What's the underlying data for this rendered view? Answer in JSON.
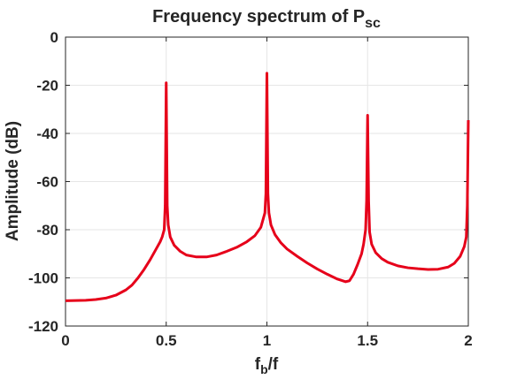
{
  "chart_data": {
    "type": "line",
    "title_main": "Frequency spectrum of P",
    "title_sub": "sc",
    "xlabel_main": "f",
    "xlabel_sub": "b",
    "xlabel_rest": "/f",
    "ylabel": "Amplitude (dB)",
    "xlim": [
      0,
      2
    ],
    "ylim": [
      -120,
      0
    ],
    "xticks": [
      0,
      0.5,
      1,
      1.5,
      2
    ],
    "xtick_labels": [
      "0",
      "0.5",
      "1",
      "1.5",
      "2"
    ],
    "yticks": [
      0,
      -20,
      -40,
      -60,
      -80,
      -100,
      -120
    ],
    "ytick_labels": [
      "0",
      "-20",
      "-40",
      "-60",
      "-80",
      "-100",
      "-120"
    ],
    "grid": true,
    "line_color": "#e6001a",
    "series": [
      {
        "x": [
          0,
          0.05,
          0.1,
          0.15,
          0.2,
          0.25,
          0.3,
          0.33,
          0.36,
          0.39,
          0.42,
          0.45,
          0.47,
          0.48,
          0.49,
          0.495,
          0.5,
          0.505,
          0.51,
          0.52,
          0.54,
          0.57,
          0.6,
          0.65,
          0.7,
          0.75,
          0.8,
          0.85,
          0.9,
          0.94,
          0.97,
          0.99,
          0.995,
          1.0,
          1.005,
          1.01,
          1.02,
          1.04,
          1.07,
          1.1,
          1.15,
          1.2,
          1.25,
          1.3,
          1.35,
          1.39,
          1.41,
          1.43,
          1.45,
          1.47,
          1.48,
          1.49,
          1.495,
          1.5,
          1.505,
          1.51,
          1.52,
          1.54,
          1.57,
          1.6,
          1.65,
          1.7,
          1.75,
          1.8,
          1.85,
          1.9,
          1.93,
          1.96,
          1.98,
          1.99,
          1.995,
          2.0
        ],
        "y": [
          -109.5,
          -109.4,
          -109.3,
          -109,
          -108.4,
          -107.2,
          -105,
          -103,
          -100,
          -96.5,
          -92.5,
          -88,
          -85,
          -83,
          -80,
          -70,
          -19,
          -70,
          -78,
          -83,
          -86.5,
          -89,
          -90.5,
          -91.3,
          -91.3,
          -90.5,
          -89,
          -87.3,
          -85,
          -82.5,
          -79,
          -73,
          -65,
          -15,
          -65,
          -73,
          -78,
          -82,
          -85.5,
          -88,
          -91,
          -93.8,
          -96.3,
          -98.5,
          -100.5,
          -101.6,
          -101.2,
          -98.5,
          -94.5,
          -90,
          -86,
          -80,
          -68,
          -32.5,
          -68,
          -81,
          -86,
          -89.5,
          -92,
          -93.5,
          -95,
          -95.8,
          -96.2,
          -96.5,
          -96.4,
          -95.5,
          -94,
          -91,
          -87,
          -83,
          -70,
          -34.5
        ]
      }
    ]
  }
}
